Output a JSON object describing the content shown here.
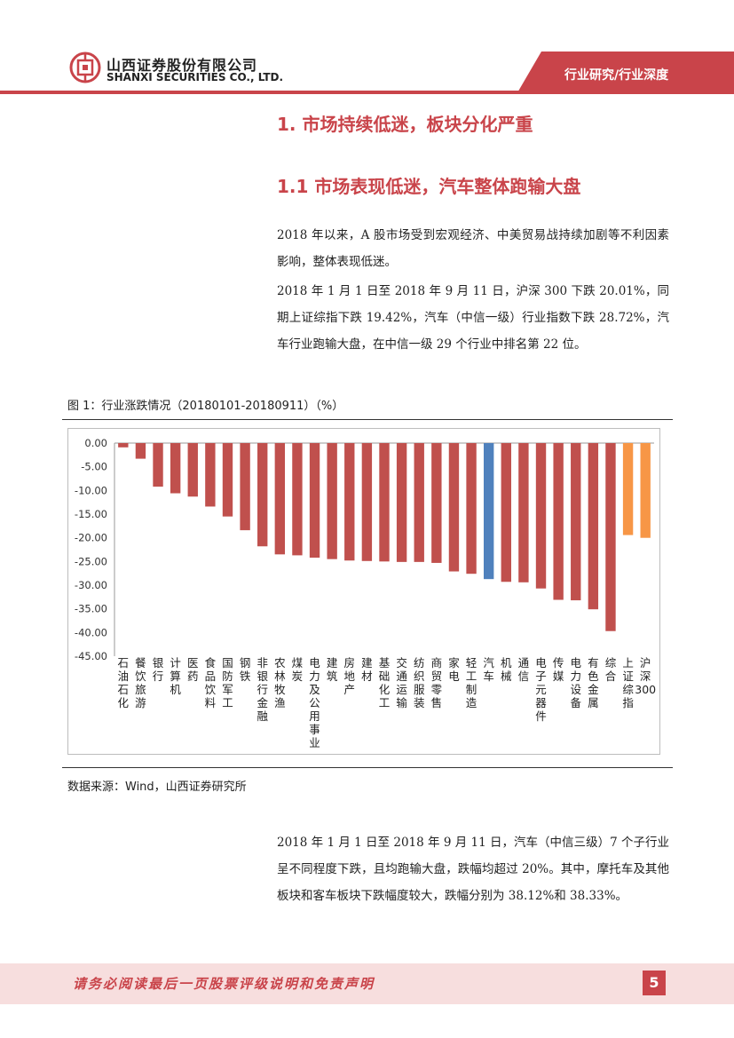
{
  "header": {
    "company_cn": "山西证券股份有限公司",
    "company_en": "SHANXI SECURITIES CO., LTD.",
    "tag": "行业研究/行业深度",
    "brand_color": "#c9444a"
  },
  "section": {
    "h1": "1. 市场持续低迷，板块分化严重",
    "h2": "1.1 市场表现低迷，汽车整体跑输大盘"
  },
  "body": {
    "p1": "2018 年以来，A 股市场受到宏观经济、中美贸易战持续加剧等不利因素影响，整体表现低迷。",
    "p2": "2018 年 1 月 1 日至 2018 年 9 月 11 日，沪深 300 下跌 20.01%，同期上证综指下跌 19.42%，汽车（中信一级）行业指数下跌 28.72%，汽车行业跑输大盘，在中信一级 29 个行业中排名第 22 位。",
    "p3": "2018 年 1 月 1 日至 2018 年 9 月 11 日，汽车（中信三级）7 个子行业呈不同程度下跌，且均跑输大盘，跌幅均超过 20%。其中，摩托车及其他板块和客车板块下跌幅度较大，跌幅分别为 38.12%和 38.33%。"
  },
  "figure": {
    "title": "图 1：行业涨跌情况（20180101-20180911）（%）",
    "source": "数据来源：Wind，山西证券研究所"
  },
  "chart_data": {
    "type": "bar",
    "categories": [
      "石油石化",
      "餐饮旅游",
      "银行",
      "计算机",
      "医药",
      "食品饮料",
      "国防军工",
      "钢铁",
      "非银行金融",
      "农林牧渔",
      "煤炭",
      "电力及公用事业",
      "建筑",
      "房地产",
      "建材",
      "基础化工",
      "交通运输",
      "纺织服装",
      "商贸零售",
      "家电",
      "轻工制造",
      "汽车",
      "机械",
      "通信",
      "电子元器件",
      "传媒",
      "电力设备",
      "有色金属",
      "综合",
      "上证综指",
      "沪深300"
    ],
    "values": [
      -0.9,
      -3.3,
      -9.2,
      -10.6,
      -11.3,
      -13.4,
      -15.5,
      -18.4,
      -21.8,
      -23.5,
      -23.7,
      -24.2,
      -24.5,
      -24.8,
      -24.9,
      -25.0,
      -25.1,
      -25.1,
      -25.3,
      -27.1,
      -27.6,
      -28.72,
      -29.3,
      -29.4,
      -30.7,
      -33.1,
      -33.2,
      -35.1,
      -39.7,
      -19.42,
      -20.01
    ],
    "colors": {
      "default": "#c0504d",
      "highlight": "#4f81bd",
      "benchmark": "#f79646"
    },
    "highlight_index": 21,
    "benchmark_indices": [
      29,
      30
    ],
    "ylim": [
      -45,
      0
    ],
    "yticks": [
      "0.00",
      "-5.00",
      "-10.00",
      "-15.00",
      "-20.00",
      "-25.00",
      "-30.00",
      "-35.00",
      "-40.00",
      "-45.00"
    ],
    "grid": false,
    "title": "",
    "xlabel": "",
    "ylabel": ""
  },
  "footer": {
    "disclaimer": "请务必阅读最后一页股票评级说明和免责声明",
    "page": "5"
  }
}
